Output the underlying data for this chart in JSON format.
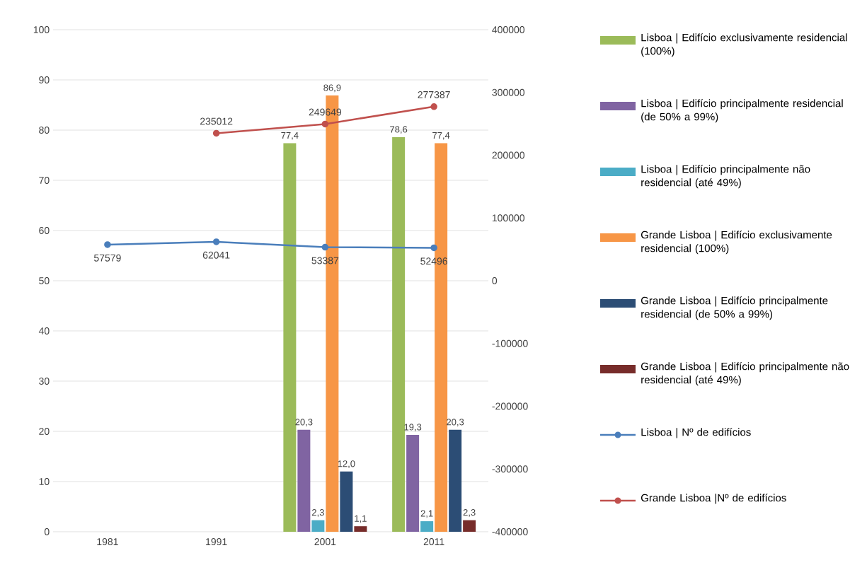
{
  "chart_data": {
    "type": "bar",
    "categories": [
      "1981",
      "1991",
      "2001",
      "2011"
    ],
    "series": [
      {
        "name": "Lisboa | Edifício exclusivamente residencial (100%)",
        "color": "#9bbb59",
        "values": [
          null,
          null,
          77.4,
          78.6
        ],
        "value_labels": [
          null,
          null,
          "77,4",
          "78,6"
        ]
      },
      {
        "name": "Lisboa | Edifício principalmente residencial (de 50% a 99%)",
        "color": "#8064a2",
        "values": [
          null,
          null,
          20.3,
          19.3
        ],
        "value_labels": [
          null,
          null,
          "20,3",
          "19,3"
        ]
      },
      {
        "name": "Lisboa | Edifício principalmente não residencial (até 49%)",
        "color": "#4bacc6",
        "values": [
          null,
          null,
          2.3,
          2.1
        ],
        "value_labels": [
          null,
          null,
          "2,3",
          "2,1"
        ]
      },
      {
        "name": "Grande Lisboa | Edifício exclusivamente residencial (100%)",
        "color": "#f79646",
        "values": [
          null,
          null,
          86.9,
          77.4
        ],
        "value_labels": [
          null,
          null,
          "86,9",
          "77,4"
        ]
      },
      {
        "name": "Grande Lisboa | Edifício principalmente residencial (de 50% a 99%)",
        "color": "#2c4d75",
        "values": [
          null,
          null,
          12.0,
          20.3
        ],
        "value_labels": [
          null,
          null,
          "12,0",
          "20,3"
        ]
      },
      {
        "name": "Grande Lisboa | Edifício principalmente não residencial (até 49%)",
        "color": "#772c2a",
        "values": [
          null,
          null,
          1.1,
          2.3
        ],
        "value_labels": [
          null,
          null,
          "1,1",
          "2,3"
        ]
      },
      {
        "name": "Lisboa | Nº de edifícios",
        "type": "line",
        "axis": "y2",
        "color": "#4a7ebb",
        "values": [
          57579,
          62041,
          53387,
          52496
        ],
        "value_labels": [
          "57579",
          "62041",
          "53387",
          "52496"
        ]
      },
      {
        "name": "Grande Lisboa |Nº de edifícios",
        "type": "line",
        "axis": "y2",
        "color": "#c0504d",
        "values": [
          null,
          235012,
          249649,
          277387
        ],
        "value_labels": [
          null,
          "235012",
          "249649",
          "277387"
        ]
      }
    ],
    "ylim": [
      0,
      100
    ],
    "yticks": [
      0,
      10,
      20,
      30,
      40,
      50,
      60,
      70,
      80,
      90,
      100
    ],
    "y2lim": [
      -400000,
      400000
    ],
    "y2ticks": [
      -400000,
      -300000,
      -200000,
      -100000,
      0,
      100000,
      200000,
      300000,
      400000
    ],
    "grid": "y",
    "legend": "right",
    "marker": "circle"
  }
}
